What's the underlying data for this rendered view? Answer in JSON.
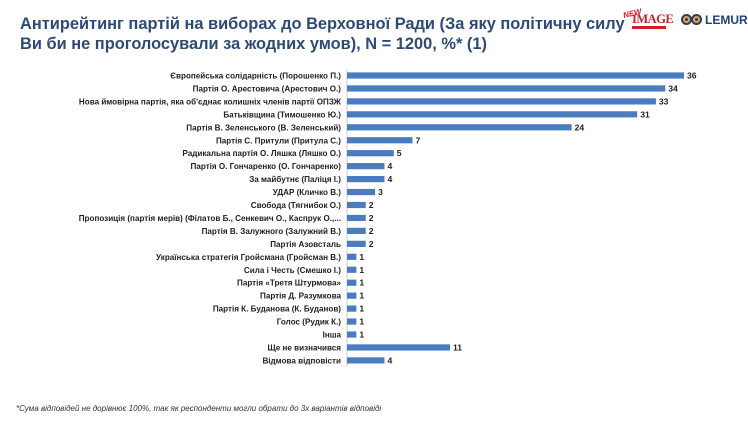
{
  "header": {
    "title_line1": "Антирейтинг партій на виборах до Верховної Ради (За яку політичну силу",
    "title_line2": "Ви би не проголосували за жодних умов), N = 1200, %* (1)"
  },
  "logos": {
    "image_new": "NEW",
    "image_text": "IMAGE",
    "lemur_text": "LEMUR"
  },
  "footnote": "*Сума відповідей не дорівнює 100%, так як респонденти могли обрати до 3х варіантів відповіді",
  "chart_data": {
    "type": "bar",
    "orientation": "horizontal",
    "bar_color": "#4a7cc0",
    "categories": [
      "Європейська солідарність (Порошенко П.)",
      "Партія О. Арестовича (Арестович О.)",
      "Нова ймовірна партія, яка об'єднає колишніх членів партії ОПЗЖ",
      "Батьківщина (Тимошенко Ю.)",
      "Партія В. Зеленського (В. Зеленський)",
      "Партія С. Притули (Притула С.)",
      "Радикальна партія О. Ляшка (Ляшко О.)",
      "Партія О. Гончаренко (О. Гончаренко)",
      "За майбутнє (Паліця І.)",
      "УДАР (Кличко В.)",
      "Свобода (Тягнибок О.)",
      "Пропозиція (партія мерів) (Філатов Б., Сенкевич О., Каспрук О.,...",
      "Партія В. Залужного (Залужний В.)",
      "Партія Азовсталь",
      "Українська стратегія Гройсмана (Гройсман В.)",
      "Сила і Честь (Смешко І.)",
      "Партія «Третя Штурмова»",
      "Партія Д. Разумкова",
      "Партія К. Буданова (К. Буданов)",
      "Голос (Рудик К.)",
      "Інша",
      "Ще не визначився",
      "Відмова відповісти"
    ],
    "values": [
      36,
      34,
      33,
      31,
      24,
      7,
      5,
      4,
      4,
      3,
      2,
      2,
      2,
      2,
      1,
      1,
      1,
      1,
      1,
      1,
      1,
      11,
      4
    ],
    "xlim": [
      0,
      36
    ]
  }
}
